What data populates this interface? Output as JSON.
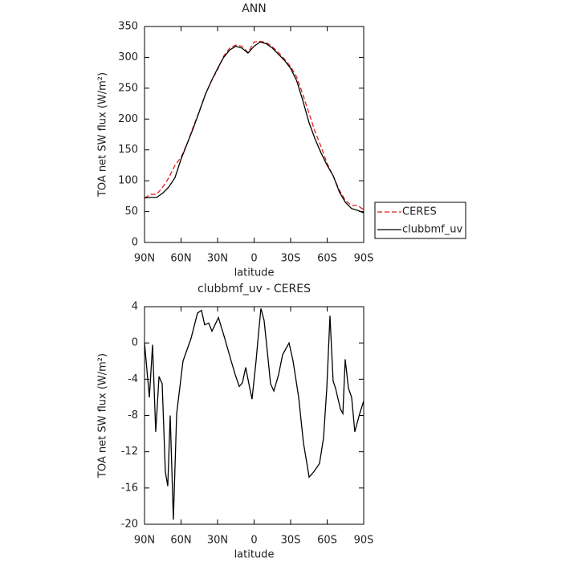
{
  "chart_data": [
    {
      "type": "line",
      "title": "ANN",
      "xlabel": "latitude",
      "ylabel": "TOA net SW flux (W/m²)",
      "x": [
        90,
        85,
        80,
        75,
        70,
        65,
        60,
        55,
        50,
        45,
        40,
        35,
        30,
        25,
        20,
        15,
        10,
        5,
        0,
        -5,
        -10,
        -15,
        -20,
        -25,
        -30,
        -35,
        -40,
        -45,
        -50,
        -55,
        -60,
        -65,
        -70,
        -75,
        -80,
        -85,
        -90
      ],
      "series": [
        {
          "name": "CERES",
          "color": "#e0201b",
          "line_style": "dashed",
          "values": [
            72,
            78,
            78,
            90,
            105,
            125,
            138,
            160,
            187,
            213,
            240,
            262,
            280,
            302,
            315,
            320,
            318,
            308,
            325,
            326,
            324,
            317,
            308,
            297,
            285,
            268,
            240,
            210,
            180,
            155,
            128,
            107,
            85,
            68,
            60,
            60,
            53
          ]
        },
        {
          "name": "clubbmf_uv",
          "color": "#000000",
          "line_style": "solid",
          "values": [
            72,
            73,
            73,
            80,
            90,
            105,
            135,
            160,
            185,
            212,
            240,
            262,
            282,
            300,
            312,
            318,
            315,
            307,
            318,
            325,
            322,
            315,
            305,
            295,
            282,
            262,
            230,
            195,
            168,
            145,
            125,
            108,
            82,
            65,
            55,
            52,
            48
          ]
        }
      ],
      "xlim": [
        90,
        -90
      ],
      "xticks": [
        {
          "value": 90,
          "label": "90N"
        },
        {
          "value": 60,
          "label": "60N"
        },
        {
          "value": 30,
          "label": "30N"
        },
        0,
        {
          "value": -30,
          "label": "30S"
        },
        {
          "value": -60,
          "label": "60S"
        },
        {
          "value": -90,
          "label": "90S"
        }
      ],
      "ylim": [
        0,
        350
      ],
      "yticks": [
        0,
        50,
        100,
        150,
        200,
        250,
        300,
        350
      ],
      "legend": "right"
    },
    {
      "type": "line",
      "title": "clubbmf_uv - CERES",
      "xlabel": "latitude",
      "ylabel": "TOA net SW flux (W/m²)",
      "x": [
        90,
        86,
        83.4,
        80.8,
        78.1,
        75.5,
        72.9,
        70.9,
        68.9,
        66.3,
        63.6,
        58.4,
        51.8,
        46.5,
        43.2,
        40.6,
        37.3,
        34.6,
        29.3,
        24.1,
        18.8,
        15.5,
        12.2,
        9.6,
        6.9,
        4.3,
        1.7,
        -1.6,
        -3.6,
        -5.6,
        -8.2,
        -10.9,
        -13.5,
        -16.2,
        -20.1,
        -23.4,
        -28.7,
        -32,
        -36.6,
        -40.5,
        -45.2,
        -49.1,
        -53.7,
        -57,
        -59.7,
        -62.3,
        -64.9,
        -66.9,
        -70.9,
        -72.9,
        -74.8,
        -77.5,
        -80.1,
        -82.7,
        -86.7,
        -90
      ],
      "series": [
        {
          "color": "#000000",
          "line_style": "solid",
          "values": [
            0,
            -6,
            -0.2,
            -9.8,
            -3.7,
            -4.5,
            -14.2,
            -15.8,
            -8,
            -19.5,
            -7.8,
            -2,
            0.5,
            3.3,
            3.6,
            2,
            2.2,
            1.3,
            2.8,
            0.5,
            -2,
            -3.5,
            -4.8,
            -4.4,
            -2.7,
            -4.5,
            -6.2,
            -2,
            1,
            3.8,
            2.5,
            -1,
            -4.5,
            -5.3,
            -3.5,
            -1.3,
            0,
            -2,
            -6,
            -11,
            -14.8,
            -14.2,
            -13.3,
            -10.5,
            -5,
            3,
            -4.2,
            -5,
            -7.3,
            -7.8,
            -1.8,
            -5,
            -6,
            -9.8,
            -7.8,
            -6.4
          ]
        }
      ],
      "xlim": [
        90,
        -90
      ],
      "xticks": [
        {
          "value": 90,
          "label": "90N"
        },
        {
          "value": 60,
          "label": "60N"
        },
        {
          "value": 30,
          "label": "30N"
        },
        0,
        {
          "value": -30,
          "label": "30S"
        },
        {
          "value": -60,
          "label": "60S"
        },
        {
          "value": -90,
          "label": "90S"
        }
      ],
      "ylim": [
        -20,
        4
      ],
      "yticks": [
        -20,
        -16,
        -12,
        -8,
        -4,
        0,
        4
      ]
    }
  ]
}
